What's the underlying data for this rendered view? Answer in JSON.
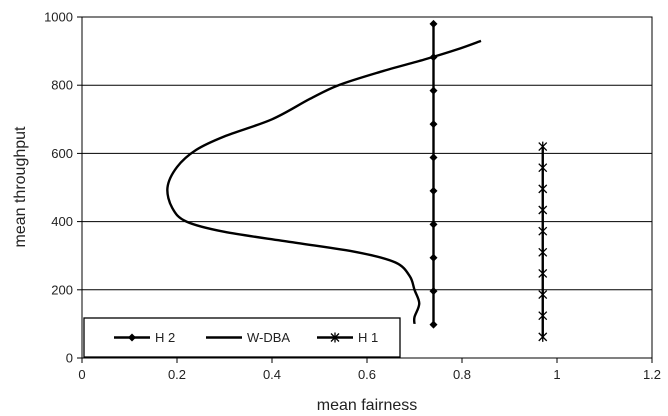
{
  "chart_data": {
    "type": "line",
    "xlabel": "mean fairness",
    "ylabel": "mean throughput",
    "xlim": [
      0,
      1.2
    ],
    "ylim": [
      0,
      1000
    ],
    "x_ticks": [
      "0",
      "0.2",
      "0.4",
      "0.6",
      "0.8",
      "1",
      "1.2"
    ],
    "y_ticks": [
      "0",
      "200",
      "400",
      "600",
      "800",
      "1000"
    ],
    "grid": "horizontal",
    "legend_position": "bottom-left",
    "series": [
      {
        "name": "H 2",
        "marker": "diamond",
        "points": [
          [
            0.74,
            98
          ],
          [
            0.74,
            196
          ],
          [
            0.74,
            294
          ],
          [
            0.74,
            392
          ],
          [
            0.74,
            490
          ],
          [
            0.74,
            588
          ],
          [
            0.74,
            686
          ],
          [
            0.74,
            784
          ],
          [
            0.74,
            882
          ],
          [
            0.74,
            980
          ]
        ]
      },
      {
        "name": "W-DBA",
        "marker": "none",
        "points": [
          [
            0.7,
            100
          ],
          [
            0.7,
            120
          ],
          [
            0.71,
            160
          ],
          [
            0.7,
            200
          ],
          [
            0.69,
            240
          ],
          [
            0.66,
            280
          ],
          [
            0.58,
            310
          ],
          [
            0.44,
            340
          ],
          [
            0.3,
            370
          ],
          [
            0.22,
            400
          ],
          [
            0.19,
            440
          ],
          [
            0.18,
            500
          ],
          [
            0.2,
            560
          ],
          [
            0.24,
            610
          ],
          [
            0.3,
            650
          ],
          [
            0.4,
            700
          ],
          [
            0.48,
            760
          ],
          [
            0.54,
            800
          ],
          [
            0.63,
            840
          ],
          [
            0.72,
            875
          ],
          [
            0.79,
            905
          ],
          [
            0.84,
            930
          ]
        ]
      },
      {
        "name": "H 1",
        "marker": "asterisk",
        "points": [
          [
            0.97,
            62
          ],
          [
            0.97,
            124
          ],
          [
            0.97,
            186
          ],
          [
            0.97,
            248
          ],
          [
            0.97,
            310
          ],
          [
            0.97,
            372
          ],
          [
            0.97,
            434
          ],
          [
            0.97,
            496
          ],
          [
            0.97,
            558
          ],
          [
            0.97,
            620
          ]
        ]
      }
    ],
    "colors": {
      "line": "#000000",
      "grid": "#000000",
      "background": "#ffffff"
    }
  }
}
